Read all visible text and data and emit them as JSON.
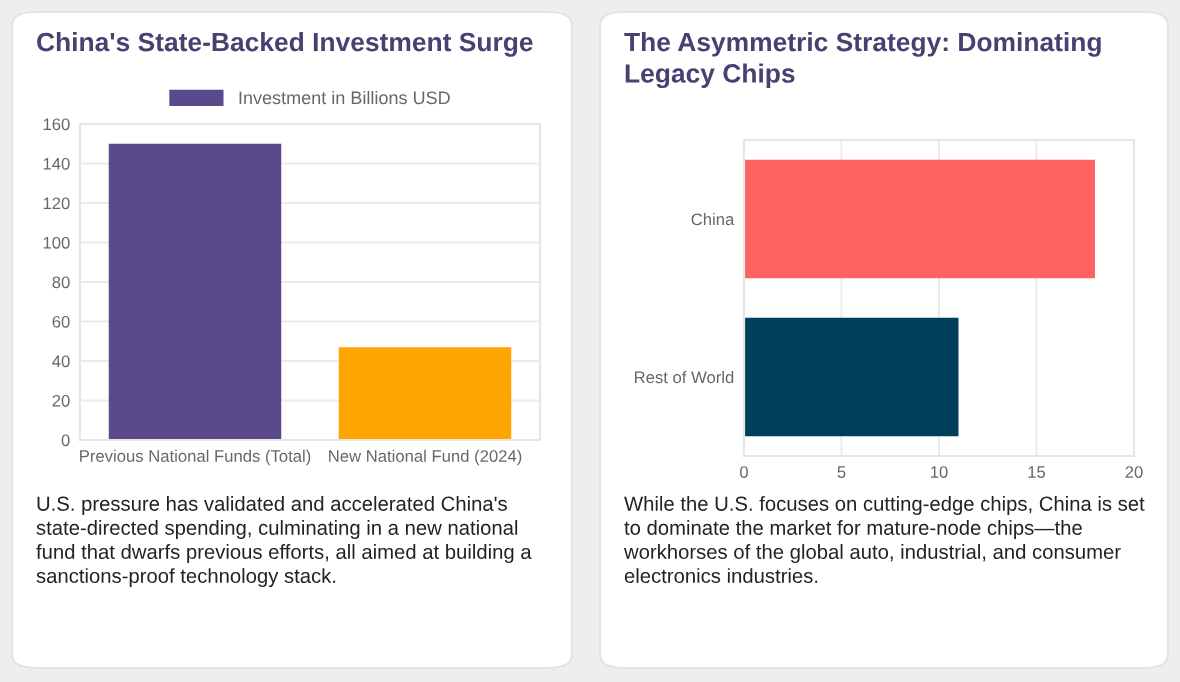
{
  "chart_data": [
    {
      "type": "bar",
      "title": "China's State-Backed Investment Surge",
      "categories": [
        "Previous National Funds (Total)",
        "New National Fund (2024)"
      ],
      "series": [
        {
          "name": "Investment in Billions USD",
          "values": [
            150,
            47
          ],
          "colors": [
            "#5b4a8b",
            "#ffa500"
          ]
        }
      ],
      "ylim": [
        0,
        160
      ],
      "yticks": [
        0,
        20,
        40,
        60,
        80,
        100,
        120,
        140,
        160
      ],
      "grid": "y",
      "legend": "top",
      "annotations": [
        "U.S. pressure has validated and accelerated China's state-directed spending, culminating in a new national fund that dwarfs previous efforts, all aimed at building a sanctions-proof technology stack."
      ]
    },
    {
      "type": "bar",
      "orientation": "horizontal",
      "title": "The Asymmetric Strategy: Dominating Legacy Chips",
      "categories": [
        "China",
        "Rest of World"
      ],
      "values": [
        18,
        11
      ],
      "colors": [
        "#ff6361",
        "#003f5c"
      ],
      "xlim": [
        0,
        20
      ],
      "xticks": [
        0,
        5,
        10,
        15,
        20
      ],
      "grid": "x",
      "legend": false,
      "annotations": [
        "While the U.S. focuses on cutting-edge chips, China is set to dominate the market for mature-node chips—the workhorses of the global auto, industrial, and consumer electronics industries."
      ]
    }
  ]
}
